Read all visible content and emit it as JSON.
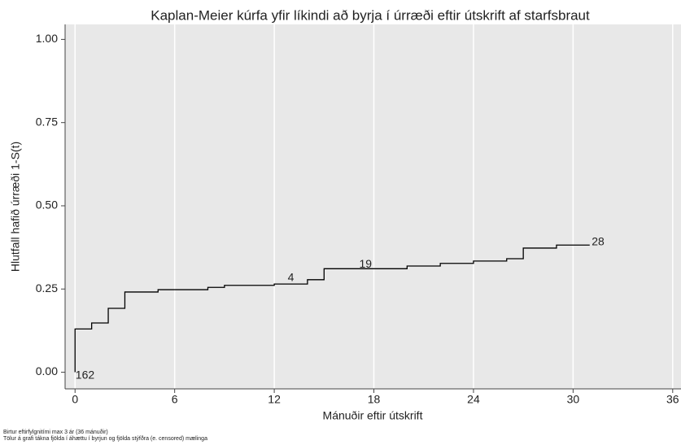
{
  "chart_data": {
    "type": "step",
    "title": "Kaplan-Meier kúrfa yfir líkindi að byrja í úrræði eftir útskrift af starfsbraut",
    "xlabel": "Mánuðir eftir útskrift",
    "ylabel": "Hlutfall hafið úrræði 1-S(t)",
    "notes": [
      "Birtur eftirfylgnitími max 3 ár (36 mánuðir)",
      "Tölur á grafi tákna fjölda í áhættu í byrjun og fjölda stýfðra (e. censored) mælinga"
    ],
    "x": [
      0,
      0,
      1,
      2,
      3,
      5,
      8,
      9,
      12,
      14,
      15,
      20,
      22,
      24,
      26,
      27,
      29,
      31
    ],
    "series": [
      {
        "name": "1-S(t)",
        "color": "#000000",
        "values": [
          0,
          0.13,
          0.148,
          0.192,
          0.241,
          0.248,
          0.255,
          0.261,
          0.265,
          0.278,
          0.311,
          0.319,
          0.327,
          0.334,
          0.341,
          0.373,
          0.382,
          0.382
        ]
      }
    ],
    "annotations": [
      {
        "text": "162",
        "x": 0.6,
        "y": -0.01
      },
      {
        "text": "4",
        "x": 13,
        "y": 0.283
      },
      {
        "text": "19",
        "x": 17.5,
        "y": 0.323
      },
      {
        "text": "28",
        "x": 31.5,
        "y": 0.39
      }
    ],
    "xlim": [
      -0.6,
      36.5
    ],
    "ylim": [
      -0.05,
      1.045
    ],
    "xticks": [
      0,
      6,
      12,
      18,
      24,
      30,
      36
    ],
    "yticks": [
      {
        "value": 0,
        "label": "0.00"
      },
      {
        "value": 0.25,
        "label": "0.25"
      },
      {
        "value": 0.5,
        "label": "0.50"
      },
      {
        "value": 0.75,
        "label": "0.75"
      },
      {
        "value": 1,
        "label": "1.00"
      }
    ],
    "grid": "x"
  }
}
